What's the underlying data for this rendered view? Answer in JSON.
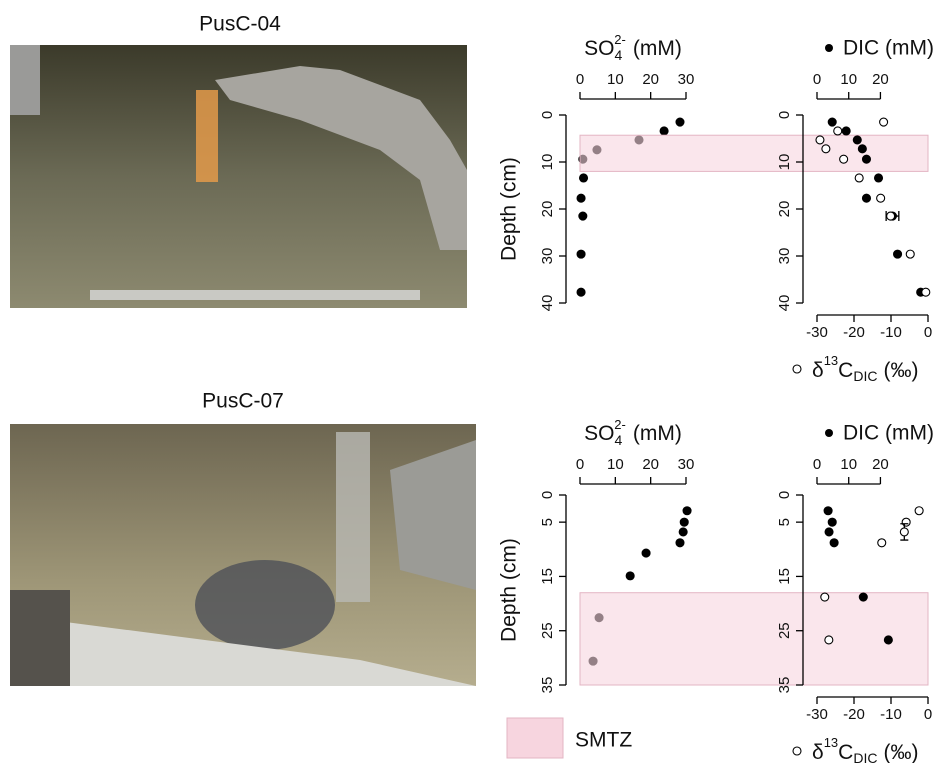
{
  "photos": [
    {
      "label": "PusC-04"
    },
    {
      "label": "PusC-07"
    }
  ],
  "legend": {
    "label": "SMTZ",
    "color": "#f7d5df"
  },
  "chart_data": [
    {
      "type": "scatter",
      "x_label": {
        "base": "SO",
        "sub": "4",
        "sup": "2-",
        "unit": "(mM)"
      },
      "y_label": "Depth (cm)",
      "xlim": [
        0,
        30
      ],
      "xticks": [
        0,
        10,
        20,
        30
      ],
      "ylim": [
        0,
        40
      ],
      "yticks": [
        0,
        10,
        20,
        30,
        40
      ],
      "y_inverted": true,
      "band": [
        4.3,
        12
      ],
      "series": [
        {
          "marker": "filled",
          "color": "#000000",
          "x": [
            28.3,
            23.8,
            16.7,
            4.8,
            0.8,
            1,
            0.3,
            0.8,
            0.3,
            0.3
          ],
          "y": [
            1.5,
            3.4,
            5.3,
            7.4,
            9.4,
            13.4,
            17.7,
            21.5,
            29.6,
            37.7
          ]
        }
      ]
    },
    {
      "type": "scatter",
      "xlim": [
        0,
        35
      ],
      "xticks": [
        0,
        10,
        20
      ],
      "x2lim": [
        -30,
        0
      ],
      "x2ticks": [
        -30,
        -20,
        -10,
        0
      ],
      "ylim": [
        0,
        40
      ],
      "yticks": [
        0,
        10,
        20,
        30,
        40
      ],
      "y_inverted": true,
      "series": [
        {
          "name": "DIC (mM)",
          "marker": "filled",
          "color": "#000000",
          "x": [
            4.8,
            9.2,
            12.7,
            14.3,
            15.6,
            19.4,
            15.6,
            23.8,
            25.4,
            32.7
          ],
          "y": [
            1.5,
            3.4,
            5.3,
            7.2,
            9.4,
            13.4,
            17.7,
            21.5,
            29.6,
            37.7
          ],
          "x_errors": [
            null,
            null,
            null,
            null,
            null,
            null,
            null,
            2,
            null,
            null
          ]
        },
        {
          "name": {
            "pre": "δ",
            "sup": "13",
            "base": "C",
            "sub": "DIC",
            "unit": "(‰)"
          },
          "marker": "open",
          "color": "#000000",
          "axis": "x2",
          "x": [
            -12,
            -24.4,
            -29.2,
            -27.6,
            -22.8,
            -18.6,
            -12.8,
            -10.1,
            -4.8,
            -0.6
          ],
          "y": [
            1.5,
            3.4,
            5.3,
            7.2,
            9.4,
            13.4,
            17.7,
            21.5,
            29.6,
            37.7
          ]
        }
      ]
    },
    {
      "type": "scatter",
      "x_label": {
        "base": "SO",
        "sub": "4",
        "sup": "2-",
        "unit": "(mM)"
      },
      "y_label": "Depth (cm)",
      "xlim": [
        0,
        30
      ],
      "xticks": [
        0,
        10,
        20,
        30
      ],
      "ylim": [
        0,
        35
      ],
      "yticks": [
        0,
        5,
        15,
        25,
        35
      ],
      "y_inverted": true,
      "band": [
        18,
        35
      ],
      "series": [
        {
          "marker": "filled",
          "color": "#000000",
          "x": [
            30.3,
            29.5,
            29.2,
            28.3,
            18.7,
            14.2,
            5.4,
            3.7
          ],
          "y": [
            2.9,
            5,
            6.8,
            8.8,
            10.7,
            14.9,
            22.6,
            30.6
          ]
        }
      ]
    },
    {
      "type": "scatter",
      "xlim": [
        0,
        35
      ],
      "xticks": [
        0,
        10,
        20
      ],
      "x2lim": [
        -30,
        0
      ],
      "x2ticks": [
        -30,
        -20,
        -10,
        0
      ],
      "ylim": [
        0,
        35
      ],
      "yticks": [
        0,
        5,
        15,
        25,
        35
      ],
      "y_inverted": true,
      "series": [
        {
          "name": "DIC (mM)",
          "marker": "filled",
          "color": "#000000",
          "x": [
            3.5,
            4.8,
            3.8,
            5.4,
            14.6,
            22.5
          ],
          "y": [
            2.9,
            5,
            6.8,
            8.8,
            18.8,
            26.7
          ]
        },
        {
          "name": {
            "pre": "δ",
            "sup": "13",
            "base": "C",
            "sub": "DIC",
            "unit": "(‰)"
          },
          "marker": "open",
          "color": "#000000",
          "axis": "x2",
          "x": [
            -2.4,
            -5.9,
            -6.4,
            -12.5,
            -27.9,
            -26.8
          ],
          "y": [
            2.9,
            5,
            6.8,
            8.8,
            18.8,
            26.7
          ],
          "y_errors": [
            null,
            null,
            1.5,
            null,
            null,
            null
          ]
        }
      ]
    }
  ]
}
